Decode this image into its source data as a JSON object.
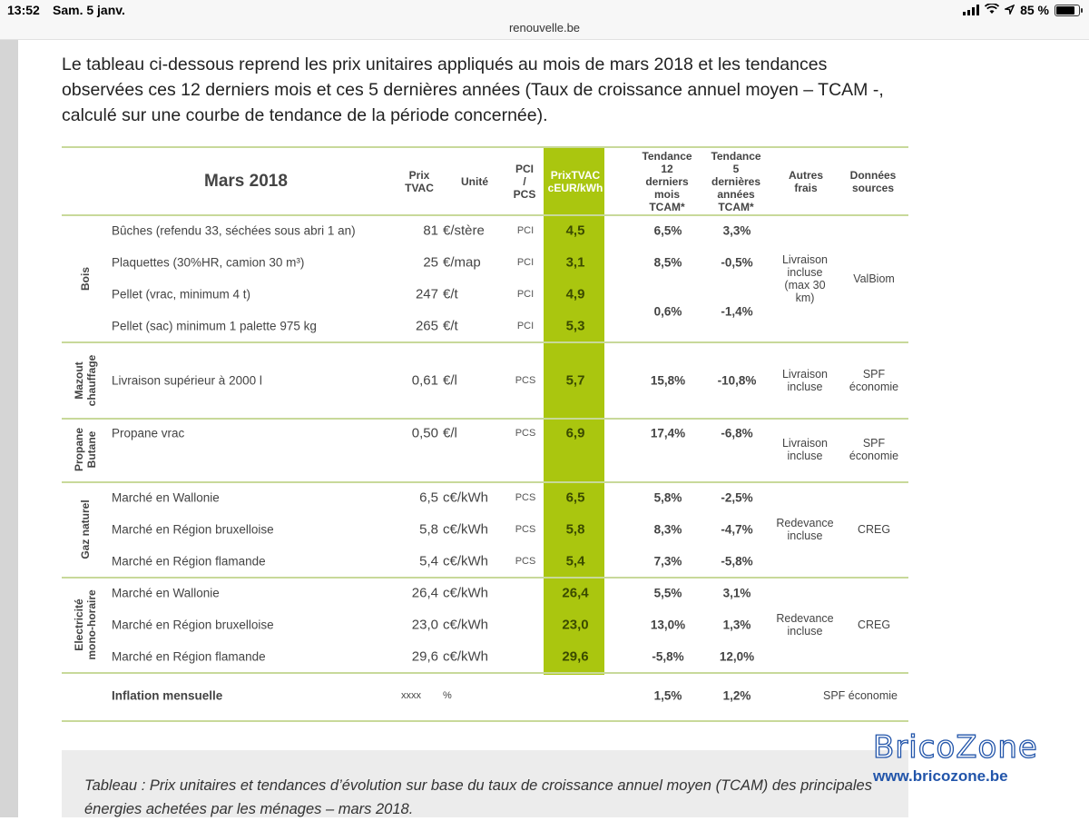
{
  "status_bar": {
    "time": "13:52",
    "date": "Sam. 5 janv.",
    "battery": "85 %",
    "battery_level": 0.85,
    "icons": [
      "signal-icon",
      "wifi-icon",
      "location-icon",
      "battery-icon"
    ]
  },
  "browser": {
    "url": "renouvelle.be"
  },
  "intro_text": "Le tableau ci-dessous reprend les prix unitaires appliqués au mois de mars 2018 et les tendances observées ces 12 derniers mois et ces 5 dernières années (Taux de croissance annuel moyen – TCAM -, calculé sur une courbe de tendance de la période concernée).",
  "table": {
    "title": "Mars 2018",
    "headers": {
      "prix": "Prix\nTVAC",
      "unite": "Unité",
      "pci": "PCI\n/\nPCS",
      "prixtvac": "PrixTVAC\ncEUR/kWh",
      "tend12": "Tendance\n12\nderniers\nmois\nTCAM*",
      "tend5": "Tendance\n5\ndernières\nannées\nTCAM*",
      "frais": "Autres\nfrais",
      "sources": "Données\nsources"
    },
    "categories": {
      "bois": "Bois",
      "mazout": "Mazout\nchauffage",
      "propane": "Propane\nButane",
      "gaz": "Gaz naturel",
      "elec": "Electricité\nmono-horaire"
    },
    "rows": [
      {
        "label": "Bûches (refendu 33, séchées sous abri 1 an)",
        "prix": "81",
        "unite": "€/stère",
        "pc": "PCI",
        "val": "4,5",
        "t12": "6,5%",
        "t5": "3,3%"
      },
      {
        "label": "Plaquettes (30%HR, camion 30 m³)",
        "prix": "25",
        "unite": "€/map",
        "pc": "PCI",
        "val": "3,1",
        "t12": "8,5%",
        "t5": "-0,5%"
      },
      {
        "label": "Pellet (vrac,  minimum 4 t)",
        "prix": "247",
        "unite": "€/t",
        "pc": "PCI",
        "val": "4,9",
        "t12": "",
        "t5": ""
      },
      {
        "label": "Pellet (sac) minimum 1 palette 975 kg",
        "prix": "265",
        "unite": "€/t",
        "pc": "PCI",
        "val": "5,3",
        "t12": "",
        "t5": ""
      },
      {
        "label": "Livraison supérieur à 2000 l",
        "prix": "0,61",
        "unite": "€/l",
        "pc": "PCS",
        "val": "5,7",
        "t12": "15,8%",
        "t5": "-10,8%"
      },
      {
        "label": "Propane vrac",
        "prix": "0,50",
        "unite": "€/l",
        "pc": "PCS",
        "val": "6,9",
        "t12": "17,4%",
        "t5": "-6,8%"
      },
      {
        "label": "Marché en Wallonie",
        "prix": "6,5",
        "unite": "c€/kWh",
        "pc": "PCS",
        "val": "6,5",
        "t12": "5,8%",
        "t5": "-2,5%"
      },
      {
        "label": "Marché en Région bruxelloise",
        "prix": "5,8",
        "unite": "c€/kWh",
        "pc": "PCS",
        "val": "5,8",
        "t12": "8,3%",
        "t5": "-4,7%"
      },
      {
        "label": "Marché en Région flamande",
        "prix": "5,4",
        "unite": "c€/kWh",
        "pc": "PCS",
        "val": "5,4",
        "t12": "7,3%",
        "t5": "-5,8%"
      },
      {
        "label": "Marché en Wallonie",
        "prix": "26,4",
        "unite": "c€/kWh",
        "pc": "",
        "val": "26,4",
        "t12": "5,5%",
        "t5": "3,1%"
      },
      {
        "label": "Marché en Région bruxelloise",
        "prix": "23,0",
        "unite": "c€/kWh",
        "pc": "",
        "val": "23,0",
        "t12": "13,0%",
        "t5": "1,3%"
      },
      {
        "label": "Marché en Région flamande",
        "prix": "29,6",
        "unite": "c€/kWh",
        "pc": "",
        "val": "29,6",
        "t12": "-5,8%",
        "t5": "12,0%"
      }
    ],
    "pellet_shared": {
      "t12": "0,6%",
      "t5": "-1,4%"
    },
    "merged": {
      "bois_frais": "Livraison\nincluse\n(max 30\nkm)",
      "bois_src": "ValBiom",
      "mazout_frais": "Livraison\nincluse",
      "mazout_src": "SPF\néconomie",
      "propane_frais": "Livraison\nincluse",
      "propane_src": "SPF\néconomie",
      "gaz_frais": "Redevance\nincluse",
      "gaz_src": "CREG",
      "elec_frais": "Redevance\nincluse",
      "elec_src": "CREG"
    },
    "inflation": {
      "label": "Inflation mensuelle",
      "prix": "xxxx",
      "unite": "%",
      "t12": "1,5%",
      "t5": "1,2%",
      "src": "SPF économie"
    }
  },
  "caption": "Tableau : Prix unitaires et tendances d’évolution sur base du taux de croissance annuel moyen (TCAM) des principales énergies achetées par les ménages – mars 2018.",
  "watermark": {
    "brand": "BricoZone",
    "url": "www.bricozone.be",
    "color": "#2255aa"
  },
  "colors": {
    "accent_green": "#aac60f",
    "rule_green": "#c8d99a"
  }
}
